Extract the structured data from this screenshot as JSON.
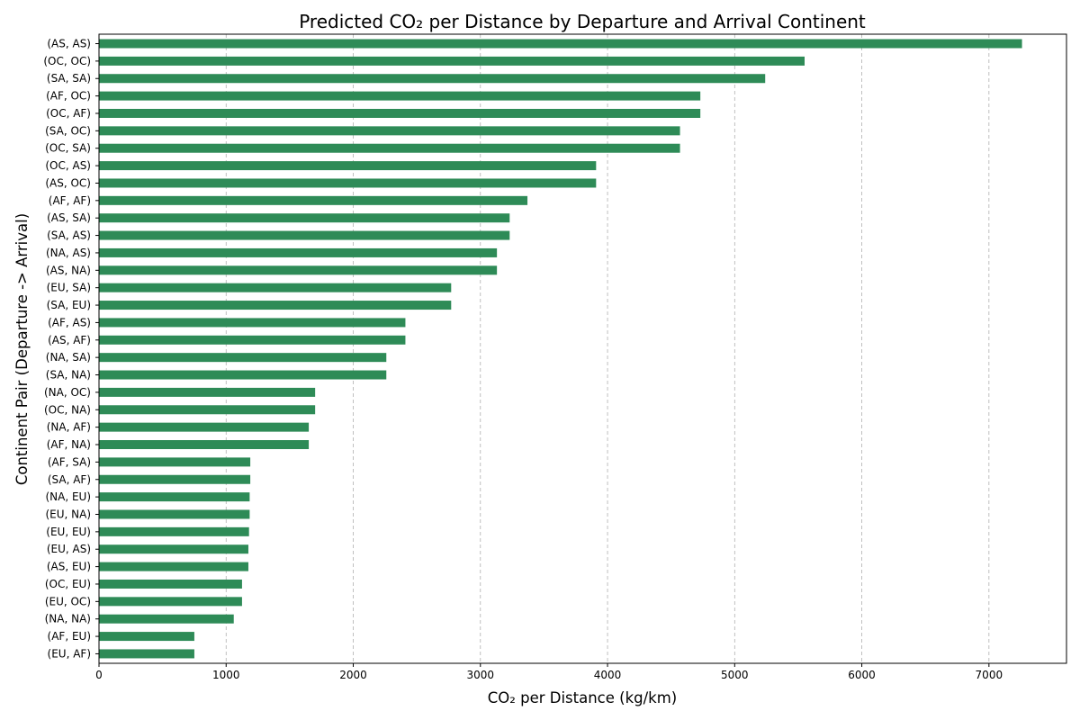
{
  "chart_data": {
    "type": "bar",
    "orientation": "horizontal",
    "title": "Predicted CO₂ per Distance by Departure and Arrival Continent",
    "xlabel": "CO₂ per Distance (kg/km)",
    "ylabel": "Continent Pair (Departure -> Arrival)",
    "xlim": [
      0,
      7610
    ],
    "xticks": [
      0,
      1000,
      2000,
      3000,
      4000,
      5000,
      6000,
      7000
    ],
    "grid": "x, dashed",
    "bar_color": "#2e8b57",
    "categories": [
      "(AS, AS)",
      "(OC, OC)",
      "(SA, SA)",
      "(AF, OC)",
      "(OC, AF)",
      "(SA, OC)",
      "(OC, SA)",
      "(OC, AS)",
      "(AS, OC)",
      "(AF, AF)",
      "(AS, SA)",
      "(SA, AS)",
      "(NA, AS)",
      "(AS, NA)",
      "(EU, SA)",
      "(SA, EU)",
      "(AF, AS)",
      "(AS, AF)",
      "(NA, SA)",
      "(SA, NA)",
      "(NA, OC)",
      "(OC, NA)",
      "(NA, AF)",
      "(AF, NA)",
      "(AF, SA)",
      "(SA, AF)",
      "(NA, EU)",
      "(EU, NA)",
      "(EU, EU)",
      "(EU, AS)",
      "(AS, EU)",
      "(OC, EU)",
      "(EU, OC)",
      "(NA, NA)",
      "(AF, EU)",
      "(EU, AF)"
    ],
    "values": [
      7260,
      5550,
      5240,
      4730,
      4730,
      4570,
      4570,
      3910,
      3910,
      3370,
      3230,
      3230,
      3130,
      3130,
      2770,
      2770,
      2410,
      2410,
      2260,
      2260,
      1700,
      1700,
      1650,
      1650,
      1190,
      1190,
      1185,
      1185,
      1180,
      1175,
      1175,
      1125,
      1125,
      1060,
      750,
      750
    ]
  }
}
